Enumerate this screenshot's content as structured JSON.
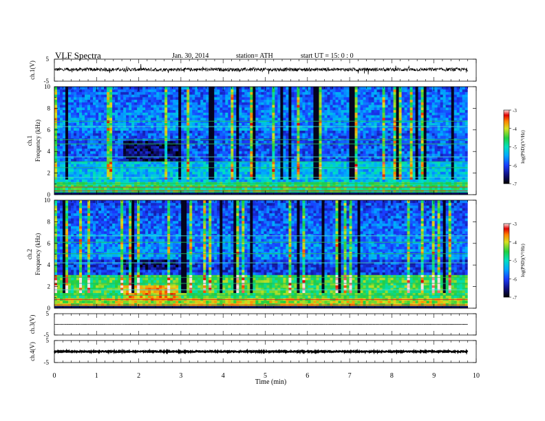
{
  "header": {
    "title": "VLF  Spectra",
    "date": "Jan. 30, 2014",
    "station": "station= ATH",
    "start": "start  UT  =   15: 0  : 0"
  },
  "chart_data": [
    {
      "type": "line",
      "id": "ch1",
      "ylabel": "ch.1(V)",
      "yticks": [
        5,
        -5
      ],
      "ylim": [
        -5,
        5
      ],
      "xlim": [
        0,
        10
      ],
      "description_values": {
        "mean_level": 0.3,
        "noise_amplitude": 0.8,
        "end_time": 9.8
      }
    },
    {
      "type": "heatmap",
      "id": "ch1_spec",
      "ylabel_top": "ch.1",
      "ylabel": "Frequency  (kHz)",
      "yticks": [
        0,
        2,
        4,
        6,
        8,
        10
      ],
      "ylim": [
        0,
        10
      ],
      "xlim": [
        0,
        10
      ],
      "data_end_time": 9.8,
      "colorbar": {
        "label": "log(PSD)(V²/Hz)",
        "ticks": [
          -7,
          -6,
          -5,
          -4,
          -3
        ],
        "range": [
          -7,
          -3
        ]
      },
      "quiet_interval": {
        "t_start": 1.65,
        "t_end": 2.95,
        "f_low": 3.2,
        "f_high": 5.0
      }
    },
    {
      "type": "heatmap",
      "id": "ch2_spec",
      "ylabel_top": "ch.2",
      "ylabel": "Frequency  (kHz)",
      "yticks": [
        0,
        2,
        4,
        6,
        8,
        10
      ],
      "ylim": [
        0,
        10
      ],
      "xlim": [
        0,
        10
      ],
      "data_end_time": 9.8,
      "colorbar": {
        "label": "log(PSD)(V²/Hz)",
        "ticks": [
          -7,
          -6,
          -5,
          -4,
          -3
        ],
        "range": [
          -7,
          -3
        ]
      },
      "quiet_interval": {
        "t_start": 1.65,
        "t_end": 2.95,
        "f_low": 3.6,
        "f_high": 4.6
      }
    },
    {
      "type": "line",
      "id": "ch3",
      "ylabel": "ch.3(V)",
      "yticks": [
        5,
        -5
      ],
      "ylim": [
        -5,
        5
      ],
      "xlim": [
        0,
        10
      ],
      "description_values": {
        "mean_level": 0.0,
        "noise_amplitude": 0.05,
        "end_time": 9.8
      }
    },
    {
      "type": "line",
      "id": "ch4",
      "ylabel": "ch.4(V)",
      "yticks": [
        5,
        -5
      ],
      "ylim": [
        -5,
        5
      ],
      "xlim": [
        0,
        10
      ],
      "description_values": {
        "mean_level": 0.0,
        "noise_amplitude": 0.25,
        "end_time": 9.8
      }
    }
  ],
  "xaxis": {
    "label": "Time  (min)",
    "ticks": [
      0,
      1,
      2,
      3,
      4,
      5,
      6,
      7,
      8,
      9,
      10
    ]
  }
}
